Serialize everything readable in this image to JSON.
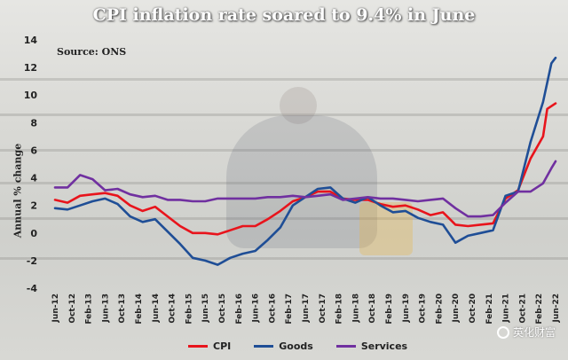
{
  "chart_data": {
    "type": "line",
    "title": "CPI inflation rate soared to 9.4% in June",
    "source": "Source: ONS",
    "ylabel": "Annual % change",
    "ylim": [
      -4,
      14
    ],
    "yticks": [
      -4,
      -2,
      0,
      2,
      4,
      6,
      8,
      10,
      12,
      14
    ],
    "x_range": [
      "2012-06",
      "2022-06"
    ],
    "xtick_labels": [
      "Jun-12",
      "Oct-12",
      "Feb-13",
      "Jun-13",
      "Oct-13",
      "Feb-14",
      "Jun-14",
      "Oct-14",
      "Feb-15",
      "Jun-15",
      "Oct-15",
      "Feb-16",
      "Jun-16",
      "Oct-16",
      "Feb-17",
      "Jun-17",
      "Oct-17",
      "Feb-18",
      "Jun-18",
      "Oct-18",
      "Feb-19",
      "Jun-19",
      "Oct-19",
      "Feb-20",
      "Jun-20",
      "Oct-20",
      "Feb-21",
      "Jun-21",
      "Oct-21",
      "Feb-22",
      "Jun-22"
    ],
    "grid": false,
    "legend_position": "bottom",
    "series": [
      {
        "name": "CPI",
        "color": "#e8141c",
        "points": [
          [
            "2012-06",
            2.4
          ],
          [
            "2012-09",
            2.2
          ],
          [
            "2012-12",
            2.7
          ],
          [
            "2013-03",
            2.8
          ],
          [
            "2013-06",
            2.9
          ],
          [
            "2013-09",
            2.7
          ],
          [
            "2013-12",
            2.0
          ],
          [
            "2014-03",
            1.6
          ],
          [
            "2014-06",
            1.9
          ],
          [
            "2014-09",
            1.2
          ],
          [
            "2014-12",
            0.5
          ],
          [
            "2015-03",
            0.0
          ],
          [
            "2015-06",
            0.0
          ],
          [
            "2015-09",
            -0.1
          ],
          [
            "2015-12",
            0.2
          ],
          [
            "2016-03",
            0.5
          ],
          [
            "2016-06",
            0.5
          ],
          [
            "2016-09",
            1.0
          ],
          [
            "2016-12",
            1.6
          ],
          [
            "2017-03",
            2.3
          ],
          [
            "2017-06",
            2.6
          ],
          [
            "2017-09",
            3.0
          ],
          [
            "2017-12",
            3.0
          ],
          [
            "2018-03",
            2.5
          ],
          [
            "2018-06",
            2.4
          ],
          [
            "2018-09",
            2.4
          ],
          [
            "2018-12",
            2.1
          ],
          [
            "2019-03",
            1.9
          ],
          [
            "2019-06",
            2.0
          ],
          [
            "2019-09",
            1.7
          ],
          [
            "2019-12",
            1.3
          ],
          [
            "2020-03",
            1.5
          ],
          [
            "2020-06",
            0.6
          ],
          [
            "2020-09",
            0.5
          ],
          [
            "2020-12",
            0.6
          ],
          [
            "2021-03",
            0.7
          ],
          [
            "2021-06",
            2.5
          ],
          [
            "2021-09",
            3.1
          ],
          [
            "2021-12",
            5.4
          ],
          [
            "2022-03",
            7.0
          ],
          [
            "2022-04",
            9.0
          ],
          [
            "2022-06",
            9.4
          ]
        ]
      },
      {
        "name": "Goods",
        "color": "#1f4e96",
        "points": [
          [
            "2012-06",
            1.8
          ],
          [
            "2012-09",
            1.7
          ],
          [
            "2012-12",
            2.0
          ],
          [
            "2013-03",
            2.3
          ],
          [
            "2013-06",
            2.5
          ],
          [
            "2013-09",
            2.1
          ],
          [
            "2013-12",
            1.2
          ],
          [
            "2014-03",
            0.8
          ],
          [
            "2014-06",
            1.0
          ],
          [
            "2014-09",
            0.1
          ],
          [
            "2014-12",
            -0.8
          ],
          [
            "2015-03",
            -1.8
          ],
          [
            "2015-06",
            -2.0
          ],
          [
            "2015-09",
            -2.3
          ],
          [
            "2015-12",
            -1.8
          ],
          [
            "2016-03",
            -1.5
          ],
          [
            "2016-06",
            -1.3
          ],
          [
            "2016-09",
            -0.5
          ],
          [
            "2016-12",
            0.4
          ],
          [
            "2017-03",
            2.0
          ],
          [
            "2017-06",
            2.6
          ],
          [
            "2017-09",
            3.2
          ],
          [
            "2017-12",
            3.3
          ],
          [
            "2018-03",
            2.5
          ],
          [
            "2018-06",
            2.2
          ],
          [
            "2018-09",
            2.6
          ],
          [
            "2018-12",
            2.0
          ],
          [
            "2019-03",
            1.5
          ],
          [
            "2019-06",
            1.6
          ],
          [
            "2019-09",
            1.1
          ],
          [
            "2019-12",
            0.8
          ],
          [
            "2020-03",
            0.6
          ],
          [
            "2020-06",
            -0.7
          ],
          [
            "2020-09",
            -0.2
          ],
          [
            "2020-12",
            0.0
          ],
          [
            "2021-03",
            0.2
          ],
          [
            "2021-06",
            2.7
          ],
          [
            "2021-09",
            3.0
          ],
          [
            "2021-12",
            6.6
          ],
          [
            "2022-03",
            9.5
          ],
          [
            "2022-05",
            12.3
          ],
          [
            "2022-06",
            12.7
          ]
        ]
      },
      {
        "name": "Services",
        "color": "#7030a0",
        "points": [
          [
            "2012-06",
            3.3
          ],
          [
            "2012-09",
            3.3
          ],
          [
            "2012-12",
            4.2
          ],
          [
            "2013-03",
            3.9
          ],
          [
            "2013-06",
            3.1
          ],
          [
            "2013-09",
            3.2
          ],
          [
            "2013-12",
            2.8
          ],
          [
            "2014-03",
            2.6
          ],
          [
            "2014-06",
            2.7
          ],
          [
            "2014-09",
            2.4
          ],
          [
            "2014-12",
            2.4
          ],
          [
            "2015-03",
            2.3
          ],
          [
            "2015-06",
            2.3
          ],
          [
            "2015-09",
            2.5
          ],
          [
            "2015-12",
            2.5
          ],
          [
            "2016-03",
            2.5
          ],
          [
            "2016-06",
            2.5
          ],
          [
            "2016-09",
            2.6
          ],
          [
            "2016-12",
            2.6
          ],
          [
            "2017-03",
            2.7
          ],
          [
            "2017-06",
            2.6
          ],
          [
            "2017-09",
            2.7
          ],
          [
            "2017-12",
            2.8
          ],
          [
            "2018-03",
            2.4
          ],
          [
            "2018-06",
            2.5
          ],
          [
            "2018-09",
            2.6
          ],
          [
            "2018-12",
            2.5
          ],
          [
            "2019-03",
            2.5
          ],
          [
            "2019-06",
            2.4
          ],
          [
            "2019-09",
            2.3
          ],
          [
            "2019-12",
            2.4
          ],
          [
            "2020-03",
            2.5
          ],
          [
            "2020-06",
            1.8
          ],
          [
            "2020-09",
            1.2
          ],
          [
            "2020-12",
            1.2
          ],
          [
            "2021-03",
            1.3
          ],
          [
            "2021-06",
            2.2
          ],
          [
            "2021-09",
            3.0
          ],
          [
            "2021-12",
            3.0
          ],
          [
            "2022-03",
            3.6
          ],
          [
            "2022-05",
            4.7
          ],
          [
            "2022-06",
            5.2
          ]
        ]
      }
    ]
  },
  "watermark": "英化财富"
}
